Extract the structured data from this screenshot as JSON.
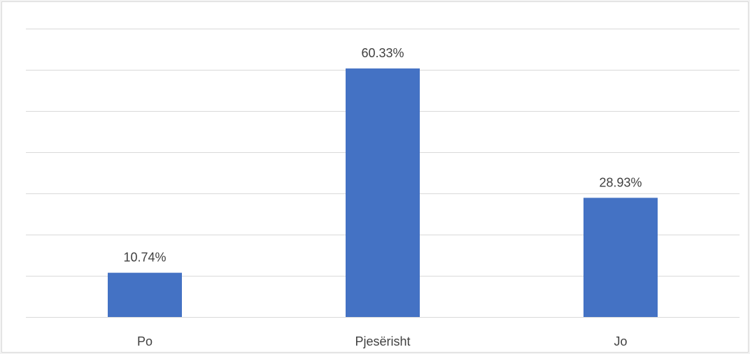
{
  "chart_data": {
    "type": "bar",
    "title": "",
    "xlabel": "",
    "ylabel": "",
    "categories": [
      "Po",
      "Pjesërisht",
      "Jo"
    ],
    "values": [
      10.74,
      60.33,
      28.93
    ],
    "data_labels": [
      "10.74%",
      "60.33%",
      "28.93%"
    ],
    "ylim": [
      0,
      70
    ],
    "grid": true,
    "legend": "none",
    "bar_color": "#4472C4"
  }
}
